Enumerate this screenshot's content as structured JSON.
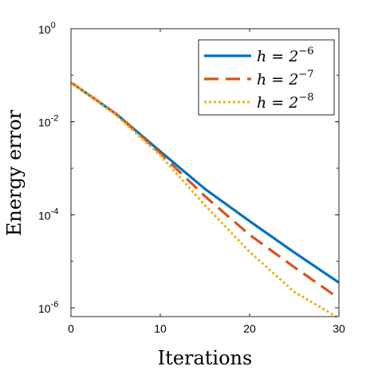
{
  "chart_data": {
    "type": "line",
    "title": "",
    "xlabel": "Iterations",
    "ylabel": "Energy error",
    "xlim": [
      0,
      30
    ],
    "ylim": [
      6e-07,
      1
    ],
    "yscale": "log",
    "xticks": [
      0,
      10,
      20,
      30
    ],
    "xtick_labels": [
      "0",
      "10",
      "20",
      "30"
    ],
    "yticks": [
      1,
      0.01,
      0.0001,
      1e-06
    ],
    "ytick_labels": [
      {
        "base": "10",
        "exp": "0"
      },
      {
        "base": "10",
        "exp": "-2"
      },
      {
        "base": "10",
        "exp": "-4"
      },
      {
        "base": "10",
        "exp": "-6"
      }
    ],
    "grid": false,
    "legend_position": "top-right",
    "series": [
      {
        "name": "h = 2^-6",
        "label_parts": {
          "lhs": "h = 2",
          "exp": "−6"
        },
        "color": "#0072BD",
        "style": "solid",
        "x": [
          0,
          5,
          10,
          15,
          20,
          25,
          30
        ],
        "y": [
          0.07,
          0.015,
          0.0023,
          0.00036,
          7.3e-05,
          1.55e-05,
          3.5e-06
        ]
      },
      {
        "name": "h = 2^-7",
        "label_parts": {
          "lhs": "h = 2",
          "exp": "−7"
        },
        "color": "#D95319",
        "style": "dashed",
        "x": [
          0,
          5,
          10,
          15,
          20,
          25,
          30
        ],
        "y": [
          0.07,
          0.015,
          0.0021,
          0.00025,
          3.7e-05,
          7.5e-06,
          1.6e-06
        ]
      },
      {
        "name": "h = 2^-8",
        "label_parts": {
          "lhs": "h = 2",
          "exp": "−8"
        },
        "color": "#EDB120",
        "style": "dotted",
        "x": [
          0,
          5,
          10,
          15,
          20,
          25,
          30
        ],
        "y": [
          0.07,
          0.014,
          0.0019,
          0.00016,
          1.6e-05,
          2.2e-06,
          6e-07
        ]
      }
    ]
  }
}
